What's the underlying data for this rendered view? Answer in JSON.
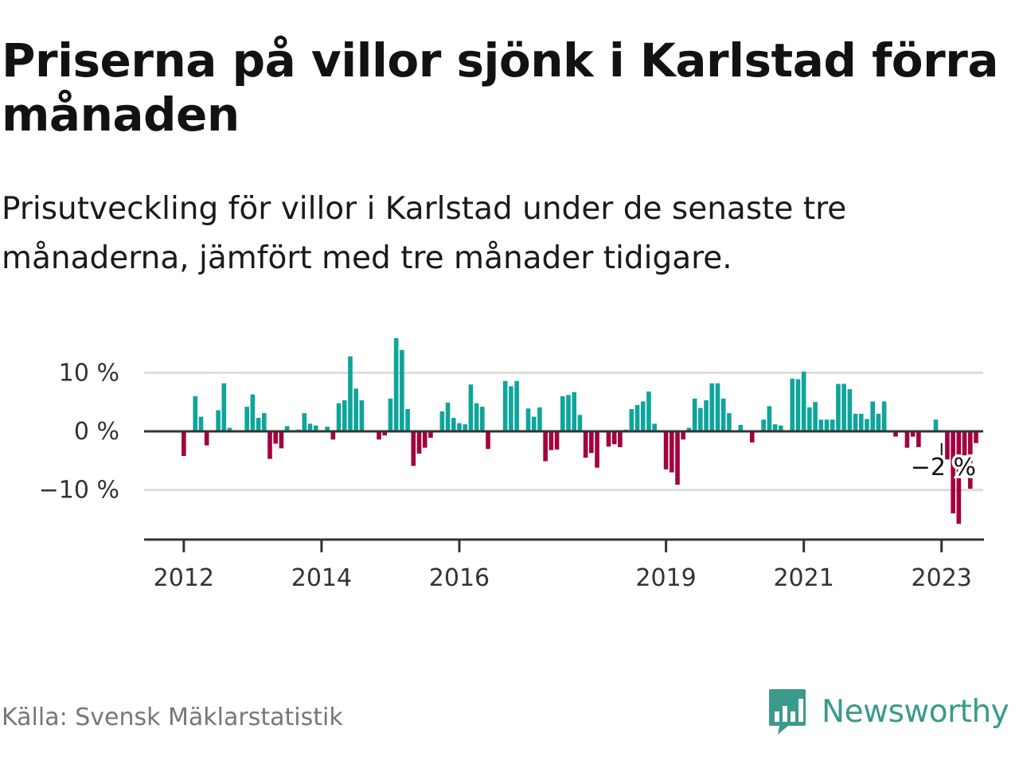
{
  "title": "Priserna på villor sjönk i Karlstad förra månaden",
  "subtitle": "Prisutveckling för villor i Karlstad under de senaste tre månaderna, jämfört med tre månader tidigare.",
  "source": "Källa: Svensk Mäklarstatistik",
  "brand": {
    "name": "Newsworthy",
    "icon": "newsworthy-bar-chart-icon"
  },
  "colors": {
    "positive": "#0ea59a",
    "negative": "#a3003f",
    "axis": "#333333",
    "grid": "#dddddd"
  },
  "chart_data": {
    "type": "bar",
    "y_unit": "%",
    "ylim": [
      -18,
      17
    ],
    "y_ticks": [
      {
        "value": 10,
        "label": "10 %"
      },
      {
        "value": 0,
        "label": "0 %"
      },
      {
        "value": -10,
        "label": "−10 %"
      }
    ],
    "grid": true,
    "x_range": [
      "2011-09",
      "2023-07"
    ],
    "x_ticks": [
      {
        "date": "2012-01",
        "label": "2012"
      },
      {
        "date": "2014-01",
        "label": "2014"
      },
      {
        "date": "2016-01",
        "label": "2016"
      },
      {
        "date": "2019-01",
        "label": "2019"
      },
      {
        "date": "2021-01",
        "label": "2021"
      },
      {
        "date": "2023-01",
        "label": "2023"
      }
    ],
    "series": [
      {
        "start": "2012-01",
        "frequency": "monthly",
        "values": [
          -4.2,
          0,
          6,
          2.5,
          -2.4,
          0,
          3.6,
          8.2,
          0.6,
          0,
          0,
          4.2,
          6.3,
          2.3,
          3.1,
          -4.7,
          -2.1,
          -2.9,
          0.9,
          0,
          0.3,
          3.1,
          1.3,
          1,
          0,
          0.8,
          -1.4,
          4.8,
          5.3,
          12.8,
          7.3,
          5.3,
          0,
          0,
          -1.4,
          -0.7,
          5.6,
          15.9,
          13.9,
          3.8,
          -5.9,
          -3.8,
          -2.8,
          -1.1,
          0,
          3.4,
          4.9,
          2.3,
          1.4,
          1.2,
          8,
          4.8,
          4.2,
          -3,
          0,
          0,
          8.6,
          7.7,
          8.6,
          0,
          3.9,
          2.5,
          4.1,
          -5.1,
          -3.2,
          -3.1,
          6,
          6.2,
          6.7,
          2.8,
          -4.5,
          -3.7,
          -6.2,
          0,
          -2.6,
          -2.2,
          -2.7,
          0.3,
          3.8,
          4.5,
          5.1,
          6.8,
          1.3,
          0,
          -6.5,
          -7,
          -9.1,
          -1.4,
          0.6,
          5.6,
          4,
          5.3,
          8.2,
          8.2,
          5.6,
          3.1,
          0,
          1.1,
          0,
          -1.9,
          0,
          2,
          4.3,
          1.2,
          1,
          0,
          9,
          8.9,
          10.2,
          4.1,
          5,
          2,
          2,
          2,
          8.1,
          8.1,
          7.2,
          3,
          3,
          2.1,
          5.1,
          3,
          5.1,
          0,
          -0.9,
          0,
          -2.8,
          -0.9,
          -2.7,
          0,
          0,
          2,
          0,
          -4.8,
          -14,
          -15.8,
          -4.1,
          -9.8,
          -2
        ]
      }
    ],
    "annotation": {
      "date": "2023-01",
      "label": "−2 %",
      "value": -2
    }
  }
}
